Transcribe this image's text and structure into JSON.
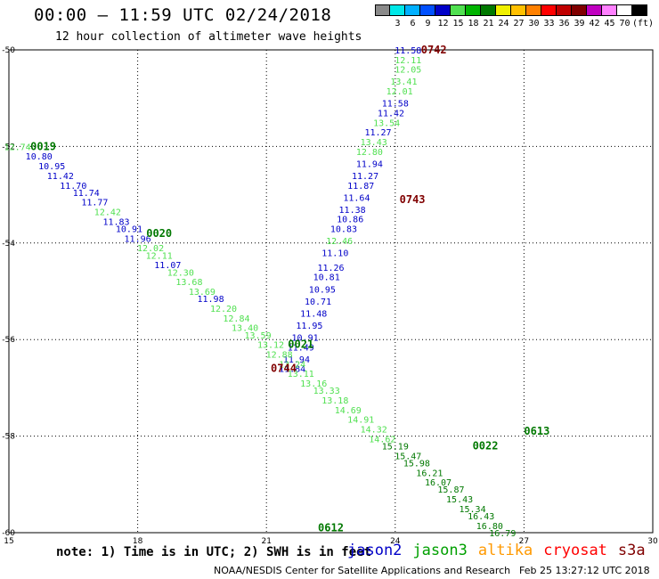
{
  "header": {
    "title": "00:00 – 11:59 UTC 02/24/2018",
    "subtitle": "12 hour collection of altimeter wave heights"
  },
  "colorbar": {
    "unit_label": "(ft)",
    "bins": [
      {
        "label": "",
        "color": "#8a8a8a"
      },
      {
        "label": "3",
        "color": "#00e8e8"
      },
      {
        "label": "6",
        "color": "#00b0ff"
      },
      {
        "label": "9",
        "color": "#0050ff"
      },
      {
        "label": "12",
        "color": "#0000c8"
      },
      {
        "label": "15",
        "color": "#50e050"
      },
      {
        "label": "18",
        "color": "#00b400"
      },
      {
        "label": "21",
        "color": "#007800"
      },
      {
        "label": "24",
        "color": "#f0f000"
      },
      {
        "label": "27",
        "color": "#ffc000"
      },
      {
        "label": "30",
        "color": "#ff8000"
      },
      {
        "label": "33",
        "color": "#ff0000"
      },
      {
        "label": "36",
        "color": "#c00000"
      },
      {
        "label": "39",
        "color": "#800000"
      },
      {
        "label": "42",
        "color": "#c000c0"
      },
      {
        "label": "45",
        "color": "#ff80ff"
      },
      {
        "label": "70",
        "color": "#ffffff"
      },
      {
        "label": "",
        "color": "#000000"
      }
    ]
  },
  "footer": {
    "note": "note: 1) Time is in UTC; 2) SWH is in feet",
    "satellites": [
      {
        "name": "jason2",
        "color": "#0000c8"
      },
      {
        "name": "jason3",
        "color": "#00a000"
      },
      {
        "name": "altika",
        "color": "#ff9900"
      },
      {
        "name": "cryosat",
        "color": "#ff0000"
      },
      {
        "name": "s3a",
        "color": "#800000"
      }
    ],
    "credit": "NOAA/NESDIS Center for Satellite Applications and Research",
    "timestamp": "Feb 25 13:27:12 UTC 2018"
  },
  "chart_data": {
    "type": "scatter",
    "xlim": [
      15,
      30
    ],
    "ylim": [
      -60,
      -50
    ],
    "x_ticks": [
      15,
      18,
      21,
      24,
      27,
      30
    ],
    "y_ticks": [
      -50,
      -52,
      -54,
      -56,
      -58,
      -60
    ],
    "grid": true,
    "colors": {
      "blue": "#0000c8",
      "light": "#50e050",
      "dark": "#007800",
      "maroon": "#800000"
    },
    "track_labels": [
      {
        "text": "0742",
        "x": 24.9,
        "y": -50.0,
        "color": "maroon"
      },
      {
        "text": "0019",
        "x": 15.8,
        "y": -52.0,
        "color": "dark"
      },
      {
        "text": "0743",
        "x": 24.4,
        "y": -53.1,
        "color": "maroon"
      },
      {
        "text": "0020",
        "x": 18.5,
        "y": -53.8,
        "color": "dark"
      },
      {
        "text": "0021",
        "x": 21.8,
        "y": -56.1,
        "color": "dark"
      },
      {
        "text": "0744",
        "x": 21.4,
        "y": -56.6,
        "color": "maroon"
      },
      {
        "text": "0613",
        "x": 27.3,
        "y": -57.9,
        "color": "dark"
      },
      {
        "text": "0022",
        "x": 26.1,
        "y": -58.2,
        "color": "dark"
      },
      {
        "text": "0612",
        "x": 22.5,
        "y": -59.9,
        "color": "dark"
      }
    ],
    "series": [
      {
        "name": "pass 0742–0744",
        "points": [
          {
            "x": 24.3,
            "y": -50.0,
            "v": "11.58",
            "c": "blue"
          },
          {
            "x": 24.3,
            "y": -50.2,
            "v": "12.11",
            "c": "light"
          },
          {
            "x": 24.3,
            "y": -50.4,
            "v": "12.05",
            "c": "light"
          },
          {
            "x": 24.2,
            "y": -50.65,
            "v": "13.41",
            "c": "light"
          },
          {
            "x": 24.1,
            "y": -50.85,
            "v": "12.01",
            "c": "light"
          },
          {
            "x": 24.0,
            "y": -51.1,
            "v": "11.58",
            "c": "blue"
          },
          {
            "x": 23.9,
            "y": -51.3,
            "v": "11.42",
            "c": "blue"
          },
          {
            "x": 23.8,
            "y": -51.5,
            "v": "13.54",
            "c": "light"
          },
          {
            "x": 23.6,
            "y": -51.7,
            "v": "11.27",
            "c": "blue"
          },
          {
            "x": 23.5,
            "y": -51.9,
            "v": "13.43",
            "c": "light"
          },
          {
            "x": 23.4,
            "y": -52.1,
            "v": "12.80",
            "c": "light"
          },
          {
            "x": 23.4,
            "y": -52.35,
            "v": "11.94",
            "c": "blue"
          },
          {
            "x": 23.3,
            "y": -52.6,
            "v": "11.27",
            "c": "blue"
          },
          {
            "x": 23.2,
            "y": -52.8,
            "v": "11.87",
            "c": "blue"
          },
          {
            "x": 23.1,
            "y": -53.05,
            "v": "11.64",
            "c": "blue"
          },
          {
            "x": 23.0,
            "y": -53.3,
            "v": "11.38",
            "c": "blue"
          },
          {
            "x": 22.95,
            "y": -53.5,
            "v": "10.86",
            "c": "blue"
          },
          {
            "x": 22.8,
            "y": -53.7,
            "v": "10.83",
            "c": "blue"
          },
          {
            "x": 22.7,
            "y": -53.95,
            "v": "12.46",
            "c": "light"
          },
          {
            "x": 22.6,
            "y": -54.2,
            "v": "11.10",
            "c": "blue"
          },
          {
            "x": 22.5,
            "y": -54.5,
            "v": "11.26",
            "c": "blue"
          },
          {
            "x": 22.4,
            "y": -54.7,
            "v": "10.81",
            "c": "blue"
          },
          {
            "x": 22.3,
            "y": -54.95,
            "v": "10.95",
            "c": "blue"
          },
          {
            "x": 22.2,
            "y": -55.2,
            "v": "10.71",
            "c": "blue"
          },
          {
            "x": 22.1,
            "y": -55.45,
            "v": "11.48",
            "c": "blue"
          },
          {
            "x": 22.0,
            "y": -55.7,
            "v": "11.95",
            "c": "blue"
          },
          {
            "x": 21.9,
            "y": -55.95,
            "v": "10.91",
            "c": "blue"
          },
          {
            "x": 21.8,
            "y": -56.15,
            "v": "11.49",
            "c": "blue"
          },
          {
            "x": 21.7,
            "y": -56.4,
            "v": "11.94",
            "c": "blue"
          },
          {
            "x": 21.6,
            "y": -56.6,
            "v": "11.84",
            "c": "blue"
          }
        ]
      },
      {
        "name": "pass 0019–0022",
        "points": [
          {
            "x": 15.2,
            "y": -52.0,
            "v": "12.74",
            "c": "light"
          },
          {
            "x": 15.7,
            "y": -52.2,
            "v": "10.80",
            "c": "blue"
          },
          {
            "x": 16.0,
            "y": -52.4,
            "v": "10.95",
            "c": "blue"
          },
          {
            "x": 16.2,
            "y": -52.6,
            "v": "11.42",
            "c": "blue"
          },
          {
            "x": 16.5,
            "y": -52.8,
            "v": "11.70",
            "c": "blue"
          },
          {
            "x": 16.8,
            "y": -52.95,
            "v": "11.74",
            "c": "blue"
          },
          {
            "x": 17.0,
            "y": -53.15,
            "v": "11.77",
            "c": "blue"
          },
          {
            "x": 17.3,
            "y": -53.35,
            "v": "12.42",
            "c": "light"
          },
          {
            "x": 17.5,
            "y": -53.55,
            "v": "11.83",
            "c": "blue"
          },
          {
            "x": 17.8,
            "y": -53.7,
            "v": "10.91",
            "c": "blue"
          },
          {
            "x": 18.0,
            "y": -53.9,
            "v": "11.96",
            "c": "blue"
          },
          {
            "x": 18.3,
            "y": -54.1,
            "v": "12.02",
            "c": "light"
          },
          {
            "x": 18.5,
            "y": -54.25,
            "v": "12.11",
            "c": "light"
          },
          {
            "x": 18.7,
            "y": -54.45,
            "v": "11.07",
            "c": "blue"
          },
          {
            "x": 19.0,
            "y": -54.6,
            "v": "12.30",
            "c": "light"
          },
          {
            "x": 19.2,
            "y": -54.8,
            "v": "13.68",
            "c": "light"
          },
          {
            "x": 19.5,
            "y": -55.0,
            "v": "13.69",
            "c": "light"
          },
          {
            "x": 19.7,
            "y": -55.15,
            "v": "11.98",
            "c": "blue"
          },
          {
            "x": 20.0,
            "y": -55.35,
            "v": "12.20",
            "c": "light"
          },
          {
            "x": 20.3,
            "y": -55.55,
            "v": "12.84",
            "c": "light"
          },
          {
            "x": 20.5,
            "y": -55.75,
            "v": "13.40",
            "c": "light"
          },
          {
            "x": 20.8,
            "y": -55.9,
            "v": "13.59",
            "c": "light"
          },
          {
            "x": 21.1,
            "y": -56.1,
            "v": "13.12",
            "c": "light"
          },
          {
            "x": 21.3,
            "y": -56.3,
            "v": "12.88",
            "c": "light"
          },
          {
            "x": 21.6,
            "y": -56.5,
            "v": "13.24",
            "c": "light"
          },
          {
            "x": 21.8,
            "y": -56.7,
            "v": "13.11",
            "c": "light"
          },
          {
            "x": 22.1,
            "y": -56.9,
            "v": "13.16",
            "c": "light"
          },
          {
            "x": 22.4,
            "y": -57.05,
            "v": "13.33",
            "c": "light"
          },
          {
            "x": 22.6,
            "y": -57.25,
            "v": "13.18",
            "c": "light"
          },
          {
            "x": 22.9,
            "y": -57.45,
            "v": "14.69",
            "c": "light"
          },
          {
            "x": 23.2,
            "y": -57.65,
            "v": "14.91",
            "c": "light"
          },
          {
            "x": 23.5,
            "y": -57.85,
            "v": "14.32",
            "c": "light"
          },
          {
            "x": 23.7,
            "y": -58.05,
            "v": "14.62",
            "c": "light"
          },
          {
            "x": 24.0,
            "y": -58.2,
            "v": "15.19",
            "c": "dark"
          },
          {
            "x": 24.3,
            "y": -58.4,
            "v": "15.47",
            "c": "dark"
          },
          {
            "x": 24.5,
            "y": -58.55,
            "v": "15.98",
            "c": "dark"
          },
          {
            "x": 24.8,
            "y": -58.75,
            "v": "16.21",
            "c": "dark"
          },
          {
            "x": 25.0,
            "y": -58.95,
            "v": "16.07",
            "c": "dark"
          },
          {
            "x": 25.3,
            "y": -59.1,
            "v": "15.87",
            "c": "dark"
          },
          {
            "x": 25.5,
            "y": -59.3,
            "v": "15.43",
            "c": "dark"
          },
          {
            "x": 25.8,
            "y": -59.5,
            "v": "15.34",
            "c": "dark"
          },
          {
            "x": 26.0,
            "y": -59.65,
            "v": "16.43",
            "c": "dark"
          },
          {
            "x": 26.2,
            "y": -59.85,
            "v": "16.80",
            "c": "dark"
          },
          {
            "x": 26.5,
            "y": -60.0,
            "v": "16.79",
            "c": "dark"
          }
        ]
      }
    ]
  }
}
